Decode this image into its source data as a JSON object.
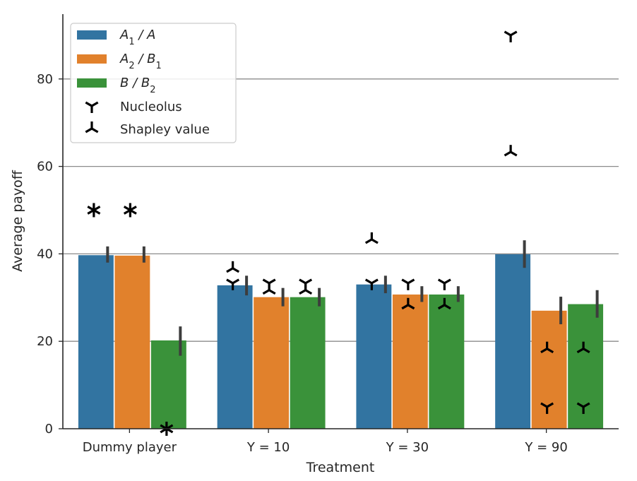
{
  "chart_data": {
    "type": "bar",
    "title": "",
    "xlabel": "Treatment",
    "ylabel": "Average payoff",
    "ylim": [
      0,
      95
    ],
    "yticks": [
      0,
      20,
      40,
      60,
      80
    ],
    "grid": "horizontal",
    "legend_position": "top-left",
    "categories": [
      "Dummy player",
      "Y = 10",
      "Y = 30",
      "Y = 90"
    ],
    "series": [
      {
        "name": "A1 / A",
        "label_main": "A",
        "label_sub": "1",
        "label_rest": " / A",
        "color": "#3274a1",
        "values": [
          39.7,
          32.8,
          33.0,
          39.9
        ],
        "err_low": [
          38.0,
          30.5,
          31.0,
          36.8
        ],
        "err_high": [
          41.7,
          35.0,
          35.0,
          43.1
        ]
      },
      {
        "name": "A2 / B1",
        "label_main": "A",
        "label_sub": "2",
        "label_rest": " / B",
        "label_sub2": "1",
        "color": "#e1812c",
        "values": [
          39.6,
          30.1,
          30.7,
          27.0
        ],
        "err_low": [
          38.0,
          28.0,
          29.0,
          23.9
        ],
        "err_high": [
          41.7,
          32.2,
          32.6,
          30.2
        ]
      },
      {
        "name": "B / B2",
        "label_main": "B",
        "label_rest": " / B",
        "label_sub2": "2",
        "color": "#3a923a",
        "values": [
          20.2,
          30.1,
          30.7,
          28.5
        ],
        "err_low": [
          16.7,
          28.0,
          29.0,
          25.4
        ],
        "err_high": [
          23.4,
          32.2,
          32.6,
          31.7
        ]
      }
    ],
    "nucleolus": [
      [
        50,
        50,
        0
      ],
      [
        33.3,
        33.3,
        33.3
      ],
      [
        33.3,
        33.3,
        33.3
      ],
      [
        90,
        5,
        5
      ]
    ],
    "shapley": [
      [
        50,
        50,
        0
      ],
      [
        36.7,
        31.7,
        31.7
      ],
      [
        43.3,
        28.3,
        28.3
      ],
      [
        63.3,
        18.3,
        18.3
      ]
    ],
    "legend_marker_labels": {
      "nucleolus": "Nucleolus",
      "shapley": "Shapley value"
    }
  }
}
